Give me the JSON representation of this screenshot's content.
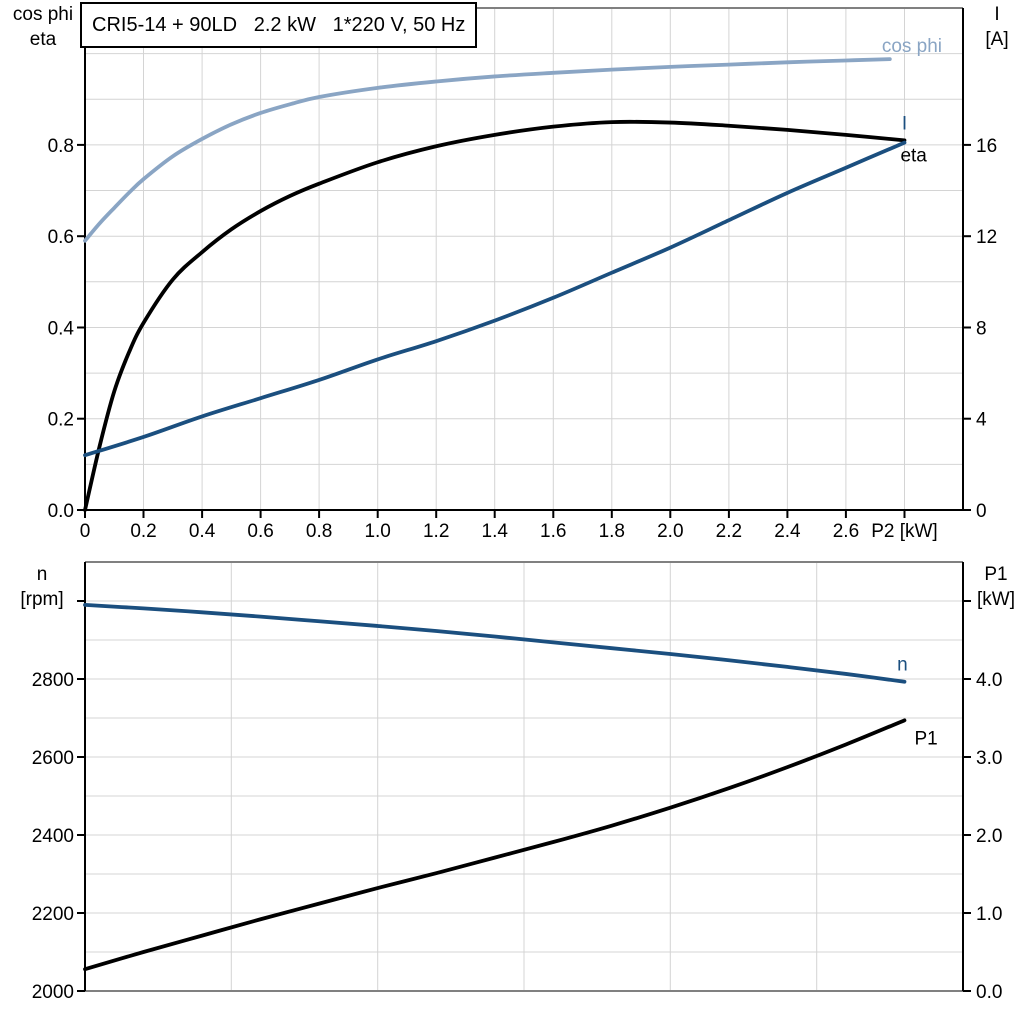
{
  "colors": {
    "light_blue": "#8aa5c4",
    "dark_blue": "#1b4f7f",
    "black": "#000000",
    "grid": "#d4d4d4",
    "border_gray": "#808080",
    "background": "#ffffff"
  },
  "chart_data": [
    {
      "type": "line",
      "title": "CRI5-14 + 90LD   2.2 kW   1*220 V, 50 Hz",
      "xlabel": "P2 [kW]",
      "xlim": [
        0,
        3.0
      ],
      "x_grid_step": 0.2,
      "x_tick_step": 0.2,
      "x_tick_labels": [
        "0",
        "0.2",
        "0.4",
        "0.6",
        "0.8",
        "1.0",
        "1.2",
        "1.4",
        "1.6",
        "1.8",
        "2.0",
        "2.2",
        "2.4",
        "2.6",
        "P2 [kW]"
      ],
      "grid": true,
      "legend_position": "curve-end-labels",
      "left_axis": {
        "title_line1": "cos phi",
        "title_line2": "eta",
        "lim": [
          0,
          1.1
        ],
        "tick_vals": [
          0,
          0.2,
          0.4,
          0.6,
          0.8
        ],
        "tick_labels": [
          "0.0",
          "0.2",
          "0.4",
          "0.6",
          "0.8"
        ],
        "grid_step": 0.1
      },
      "right_axis": {
        "title_line1": "I",
        "title_line2": "[A]",
        "lim": [
          0,
          22
        ],
        "tick_vals": [
          0,
          4,
          8,
          12,
          16
        ],
        "tick_labels": [
          "0",
          "4",
          "8",
          "12",
          "16"
        ],
        "grid_step": 2
      },
      "series": [
        {
          "name": "cos phi",
          "axis": "left",
          "color": "#8aa5c4",
          "points": [
            [
              0,
              0.59
            ],
            [
              0.05,
              0.628
            ],
            [
              0.1,
              0.662
            ],
            [
              0.15,
              0.695
            ],
            [
              0.2,
              0.725
            ],
            [
              0.3,
              0.775
            ],
            [
              0.4,
              0.813
            ],
            [
              0.5,
              0.845
            ],
            [
              0.6,
              0.87
            ],
            [
              0.7,
              0.889
            ],
            [
              0.8,
              0.905
            ],
            [
              1.0,
              0.925
            ],
            [
              1.2,
              0.939
            ],
            [
              1.4,
              0.95
            ],
            [
              1.6,
              0.958
            ],
            [
              1.8,
              0.965
            ],
            [
              2.0,
              0.971
            ],
            [
              2.2,
              0.976
            ],
            [
              2.4,
              0.981
            ],
            [
              2.6,
              0.985
            ],
            [
              2.75,
              0.988
            ]
          ]
        },
        {
          "name": "eta",
          "axis": "left",
          "color": "#000000",
          "points": [
            [
              0,
              0
            ],
            [
              0.05,
              0.14
            ],
            [
              0.1,
              0.26
            ],
            [
              0.15,
              0.345
            ],
            [
              0.2,
              0.41
            ],
            [
              0.3,
              0.505
            ],
            [
              0.4,
              0.565
            ],
            [
              0.5,
              0.615
            ],
            [
              0.6,
              0.655
            ],
            [
              0.7,
              0.688
            ],
            [
              0.8,
              0.715
            ],
            [
              1.0,
              0.762
            ],
            [
              1.2,
              0.797
            ],
            [
              1.4,
              0.822
            ],
            [
              1.6,
              0.84
            ],
            [
              1.8,
              0.85
            ],
            [
              2.0,
              0.849
            ],
            [
              2.2,
              0.842
            ],
            [
              2.4,
              0.833
            ],
            [
              2.6,
              0.822
            ],
            [
              2.8,
              0.81
            ]
          ]
        },
        {
          "name": "I",
          "axis": "right",
          "color": "#1b4f7f",
          "points": [
            [
              0,
              2.4
            ],
            [
              0.2,
              3.2
            ],
            [
              0.4,
              4.1
            ],
            [
              0.6,
              4.9
            ],
            [
              0.8,
              5.7
            ],
            [
              1.0,
              6.6
            ],
            [
              1.2,
              7.4
            ],
            [
              1.4,
              8.3
            ],
            [
              1.6,
              9.3
            ],
            [
              1.8,
              10.4
            ],
            [
              2.0,
              11.5
            ],
            [
              2.2,
              12.7
            ],
            [
              2.4,
              13.9
            ],
            [
              2.6,
              15.0
            ],
            [
              2.8,
              16.1
            ]
          ]
        }
      ]
    },
    {
      "type": "line",
      "title": "",
      "xlabel": "",
      "xlim": [
        0,
        3.0
      ],
      "x_grid_step": 0.5,
      "x_tick_labels": [],
      "grid": true,
      "legend_position": "curve-end-labels",
      "left_axis": {
        "title_line1": "n",
        "title_line2": "[rpm]",
        "lim": [
          2000,
          3100
        ],
        "tick_vals": [
          2000,
          2200,
          2400,
          2600,
          2800,
          3000
        ],
        "tick_labels": [
          "2000",
          "2200",
          "2400",
          "2600",
          "2800",
          ""
        ],
        "grid_step": 100
      },
      "right_axis": {
        "title_line1": "P1",
        "title_line2": "[kW]",
        "lim": [
          0,
          5.5
        ],
        "tick_vals": [
          0,
          1,
          2,
          3,
          4,
          5
        ],
        "tick_labels": [
          "0.0",
          "1.0",
          "2.0",
          "3.0",
          "4.0",
          ""
        ],
        "grid_step": 0.5
      },
      "series": [
        {
          "name": "n",
          "axis": "left",
          "color": "#1b4f7f",
          "points": [
            [
              0,
              2990
            ],
            [
              0.2,
              2981
            ],
            [
              0.4,
              2971
            ],
            [
              0.6,
              2960
            ],
            [
              0.8,
              2948
            ],
            [
              1.0,
              2936
            ],
            [
              1.2,
              2923
            ],
            [
              1.4,
              2909
            ],
            [
              1.6,
              2894
            ],
            [
              1.8,
              2879
            ],
            [
              2.0,
              2864
            ],
            [
              2.2,
              2848
            ],
            [
              2.4,
              2831
            ],
            [
              2.6,
              2813
            ],
            [
              2.8,
              2793
            ]
          ]
        },
        {
          "name": "P1",
          "axis": "left-none",
          "axis_used": "right",
          "color": "#000000",
          "points": [
            [
              0,
              0.28
            ],
            [
              0.2,
              0.5
            ],
            [
              0.4,
              0.71
            ],
            [
              0.6,
              0.92
            ],
            [
              0.8,
              1.12
            ],
            [
              1.0,
              1.32
            ],
            [
              1.2,
              1.51
            ],
            [
              1.4,
              1.71
            ],
            [
              1.6,
              1.91
            ],
            [
              1.8,
              2.12
            ],
            [
              2.0,
              2.35
            ],
            [
              2.2,
              2.6
            ],
            [
              2.4,
              2.87
            ],
            [
              2.6,
              3.16
            ],
            [
              2.8,
              3.47
            ]
          ]
        }
      ]
    }
  ]
}
